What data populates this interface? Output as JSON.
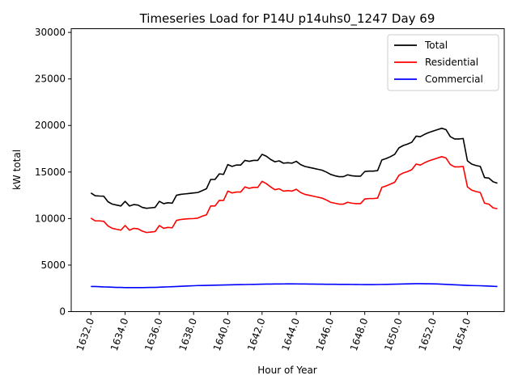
{
  "chart_data": {
    "type": "line",
    "title": "Timeseries Load for P14U p14uhs0_1247  Day 69",
    "xlabel": "Hour of Year",
    "ylabel": "kW total",
    "xlim": [
      1630.85,
      1656.15
    ],
    "ylim": [
      0,
      30400
    ],
    "xticks": [
      1632,
      1634,
      1636,
      1638,
      1640,
      1642,
      1644,
      1646,
      1648,
      1650,
      1652,
      1654
    ],
    "xtick_labels": [
      "1632.0",
      "1634.0",
      "1636.0",
      "1638.0",
      "1640.0",
      "1642.0",
      "1644.0",
      "1646.0",
      "1648.0",
      "1650.0",
      "1652.0",
      "1654.0"
    ],
    "yticks": [
      0,
      5000,
      10000,
      15000,
      20000,
      25000,
      30000
    ],
    "ytick_labels": [
      "0",
      "5000",
      "10000",
      "15000",
      "20000",
      "25000",
      "30000"
    ],
    "legend_position": "top-right",
    "x": [
      1632.0,
      1632.25,
      1632.5,
      1632.75,
      1633.0,
      1633.25,
      1633.5,
      1633.75,
      1634.0,
      1634.25,
      1634.5,
      1634.75,
      1635.0,
      1635.25,
      1635.5,
      1635.75,
      1636.0,
      1636.25,
      1636.5,
      1636.75,
      1637.0,
      1637.25,
      1637.5,
      1637.75,
      1638.0,
      1638.25,
      1638.5,
      1638.75,
      1639.0,
      1639.25,
      1639.5,
      1639.75,
      1640.0,
      1640.25,
      1640.5,
      1640.75,
      1641.0,
      1641.25,
      1641.5,
      1641.75,
      1642.0,
      1642.25,
      1642.5,
      1642.75,
      1643.0,
      1643.25,
      1643.5,
      1643.75,
      1644.0,
      1644.25,
      1644.5,
      1644.75,
      1645.0,
      1645.25,
      1645.5,
      1645.75,
      1646.0,
      1646.25,
      1646.5,
      1646.75,
      1647.0,
      1647.25,
      1647.5,
      1647.75,
      1648.0,
      1648.25,
      1648.5,
      1648.75,
      1649.0,
      1649.25,
      1649.5,
      1649.75,
      1650.0,
      1650.25,
      1650.5,
      1650.75,
      1651.0,
      1651.25,
      1651.5,
      1651.75,
      1652.0,
      1652.25,
      1652.5,
      1652.75,
      1653.0,
      1653.25,
      1653.5,
      1653.75,
      1654.0,
      1654.25,
      1654.5,
      1654.75,
      1655.0,
      1655.25,
      1655.5,
      1655.75
    ],
    "series": [
      {
        "name": "Total",
        "color": "#000000",
        "values": [
          12750,
          12450,
          12420,
          12400,
          11800,
          11550,
          11450,
          11350,
          11850,
          11350,
          11500,
          11450,
          11200,
          11100,
          11150,
          11200,
          11850,
          11600,
          11700,
          11650,
          12500,
          12600,
          12650,
          12700,
          12750,
          12800,
          13000,
          13200,
          14200,
          14200,
          14800,
          14750,
          15800,
          15600,
          15750,
          15750,
          16250,
          16150,
          16250,
          16250,
          16900,
          16700,
          16350,
          16100,
          16200,
          15950,
          16000,
          15950,
          16150,
          15800,
          15600,
          15500,
          15400,
          15300,
          15200,
          15000,
          14750,
          14600,
          14500,
          14500,
          14700,
          14600,
          14550,
          14550,
          15050,
          15100,
          15100,
          15150,
          16300,
          16450,
          16650,
          16900,
          17600,
          17850,
          18000,
          18200,
          18850,
          18800,
          19050,
          19250,
          19400,
          19550,
          19700,
          19550,
          18800,
          18550,
          18550,
          18600,
          16200,
          15850,
          15700,
          15600,
          14400,
          14350,
          13950,
          13800
        ]
      },
      {
        "name": "Residential",
        "color": "#ff0000",
        "values": [
          10050,
          9750,
          9750,
          9700,
          9200,
          8950,
          8850,
          8750,
          9250,
          8750,
          8950,
          8900,
          8650,
          8500,
          8550,
          8600,
          9250,
          8950,
          9050,
          9000,
          9800,
          9900,
          9950,
          9980,
          10000,
          10050,
          10250,
          10400,
          11350,
          11350,
          11950,
          11950,
          12950,
          12750,
          12850,
          12850,
          13400,
          13250,
          13350,
          13350,
          14000,
          13750,
          13400,
          13100,
          13200,
          12950,
          13000,
          12950,
          13150,
          12800,
          12600,
          12500,
          12400,
          12300,
          12200,
          12000,
          11750,
          11650,
          11550,
          11550,
          11750,
          11650,
          11600,
          11600,
          12100,
          12150,
          12150,
          12200,
          13350,
          13500,
          13700,
          13900,
          14650,
          14900,
          15050,
          15250,
          15850,
          15750,
          16000,
          16200,
          16350,
          16500,
          16650,
          16500,
          15800,
          15550,
          15550,
          15600,
          13400,
          13050,
          12900,
          12800,
          11650,
          11550,
          11150,
          11050
        ]
      },
      {
        "name": "Commercial",
        "color": "#0000ff",
        "values": [
          2700,
          2700,
          2680,
          2650,
          2640,
          2620,
          2600,
          2600,
          2580,
          2580,
          2580,
          2580,
          2580,
          2590,
          2600,
          2600,
          2620,
          2640,
          2660,
          2680,
          2700,
          2720,
          2740,
          2760,
          2780,
          2800,
          2810,
          2820,
          2830,
          2840,
          2850,
          2860,
          2870,
          2880,
          2890,
          2900,
          2910,
          2920,
          2930,
          2940,
          2950,
          2955,
          2960,
          2965,
          2970,
          2975,
          2980,
          2980,
          2975,
          2970,
          2965,
          2960,
          2955,
          2950,
          2945,
          2940,
          2940,
          2935,
          2930,
          2930,
          2925,
          2920,
          2915,
          2910,
          2905,
          2900,
          2900,
          2910,
          2920,
          2930,
          2940,
          2950,
          2960,
          2970,
          2980,
          2990,
          3000,
          3000,
          2995,
          2990,
          2980,
          2970,
          2950,
          2930,
          2900,
          2880,
          2860,
          2840,
          2820,
          2800,
          2790,
          2780,
          2760,
          2740,
          2720,
          2700
        ]
      }
    ]
  }
}
